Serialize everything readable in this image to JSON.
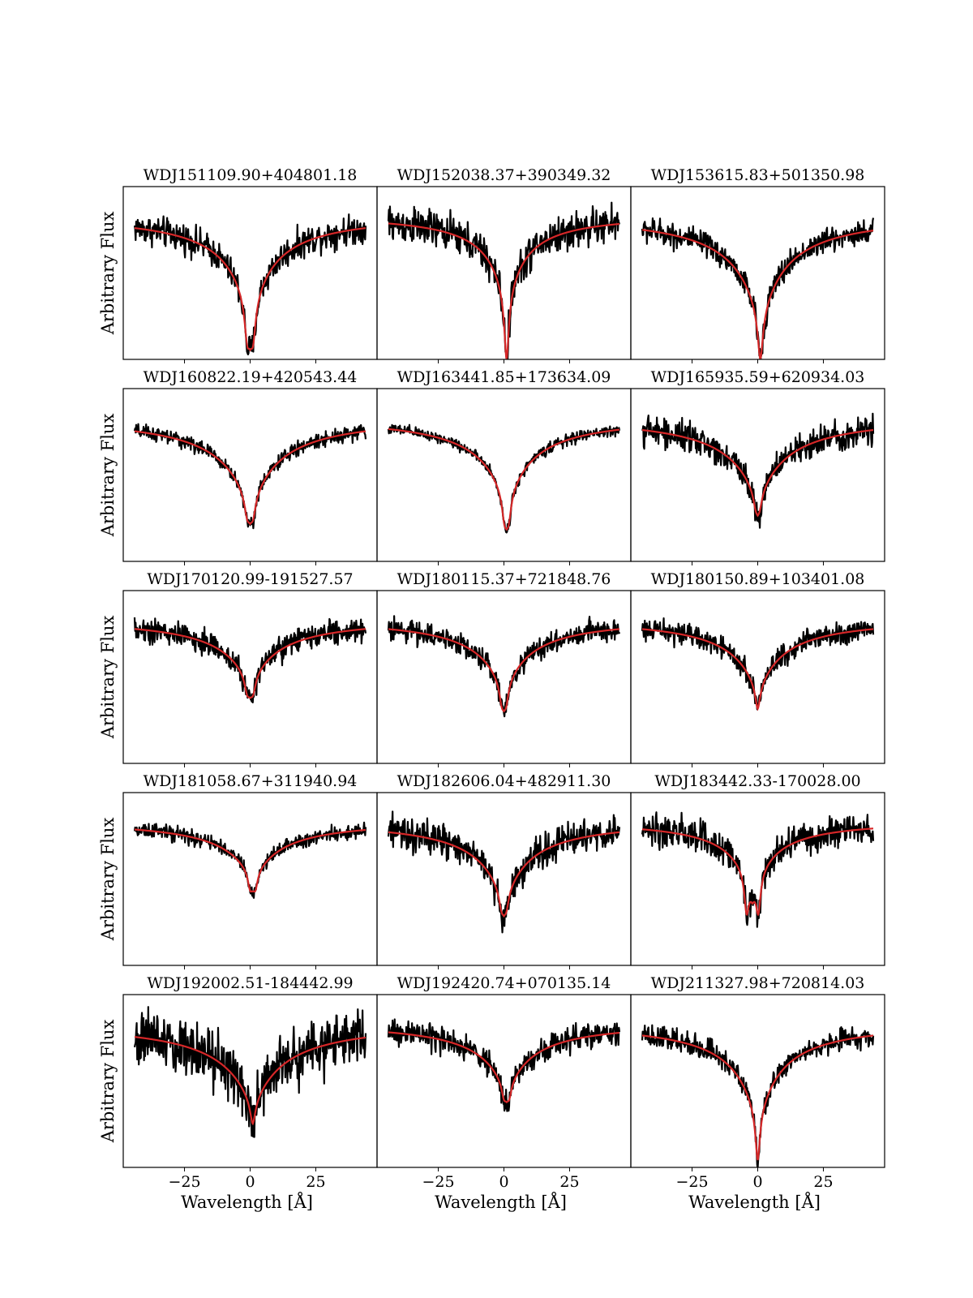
{
  "figure": {
    "xlabel": "Wavelength [Å]",
    "ylabel": "Arbitrary Flux",
    "xticks": [
      -25,
      0,
      25
    ],
    "xtick_labels": [
      "−25",
      "0",
      "25"
    ]
  },
  "colors": {
    "data": "#000000",
    "model": "#d62728",
    "axes": "#000000"
  },
  "chart_data": [
    {
      "type": "line",
      "title": "WDJ151109.90+404801.18",
      "xlim": [
        -44,
        44
      ],
      "ylim": [
        0.2,
        1.15
      ],
      "center": 0,
      "depth": 0.56,
      "width": 9,
      "core_depth": 0.28,
      "core_width": 1.2,
      "core_split": 2.2,
      "noise": 0.04,
      "series": [
        {
          "name": "",
          "role": "data"
        },
        {
          "name": "",
          "role": "model"
        }
      ]
    },
    {
      "type": "line",
      "title": "WDJ152038.37+390349.32",
      "xlim": [
        -44,
        44
      ],
      "ylim": [
        0.2,
        1.15
      ],
      "center": 1,
      "depth": 0.5,
      "width": 7,
      "core_depth": 0.3,
      "core_width": 1.0,
      "core_split": 0,
      "noise": 0.05,
      "series": [
        {
          "name": "",
          "role": "data"
        },
        {
          "name": "",
          "role": "model"
        }
      ]
    },
    {
      "type": "line",
      "title": "WDJ153615.83+501350.98",
      "xlim": [
        -44,
        44
      ],
      "ylim": [
        0.2,
        1.15
      ],
      "center": 1,
      "depth": 0.58,
      "width": 10,
      "core_depth": 0.22,
      "core_width": 1.2,
      "core_split": 0,
      "noise": 0.035,
      "series": [
        {
          "name": "",
          "role": "data"
        },
        {
          "name": "",
          "role": "model"
        }
      ]
    },
    {
      "type": "line",
      "title": "WDJ160822.19+420543.44",
      "xlim": [
        -44,
        44
      ],
      "ylim": [
        0.2,
        1.15
      ],
      "center": 0,
      "depth": 0.5,
      "width": 11,
      "core_depth": 0.14,
      "core_width": 1.2,
      "core_split": 2.2,
      "noise": 0.02,
      "series": [
        {
          "name": "",
          "role": "data"
        },
        {
          "name": "",
          "role": "model"
        }
      ]
    },
    {
      "type": "line",
      "title": "WDJ163441.85+173634.09",
      "xlim": [
        -44,
        44
      ],
      "ylim": [
        0.2,
        1.15
      ],
      "center": 1,
      "depth": 0.48,
      "width": 10,
      "core_depth": 0.18,
      "core_width": 1.1,
      "core_split": 1.6,
      "noise": 0.015,
      "series": [
        {
          "name": "",
          "role": "data"
        },
        {
          "name": "",
          "role": "model"
        }
      ]
    },
    {
      "type": "line",
      "title": "WDJ165935.59+620934.03",
      "xlim": [
        -44,
        44
      ],
      "ylim": [
        0.2,
        1.15
      ],
      "center": 0,
      "depth": 0.46,
      "width": 11,
      "core_depth": 0.1,
      "core_width": 1.1,
      "core_split": 1.4,
      "noise": 0.04,
      "series": [
        {
          "name": "",
          "role": "data"
        },
        {
          "name": "",
          "role": "model"
        }
      ]
    },
    {
      "type": "line",
      "title": "WDJ170120.99-191527.57",
      "xlim": [
        -44,
        44
      ],
      "ylim": [
        0.2,
        1.15
      ],
      "center": 0,
      "depth": 0.36,
      "width": 11,
      "core_depth": 0.12,
      "core_width": 1.2,
      "core_split": 2.2,
      "noise": 0.035,
      "series": [
        {
          "name": "",
          "role": "data"
        },
        {
          "name": "",
          "role": "model"
        }
      ]
    },
    {
      "type": "line",
      "title": "WDJ180115.37+721848.76",
      "xlim": [
        -44,
        44
      ],
      "ylim": [
        0.2,
        1.15
      ],
      "center": 0,
      "depth": 0.4,
      "width": 10,
      "core_depth": 0.14,
      "core_width": 1.1,
      "core_split": 1.6,
      "noise": 0.03,
      "series": [
        {
          "name": "",
          "role": "data"
        },
        {
          "name": "",
          "role": "model"
        }
      ]
    },
    {
      "type": "line",
      "title": "WDJ180150.89+103401.08",
      "xlim": [
        -44,
        44
      ],
      "ylim": [
        0.2,
        1.15
      ],
      "center": 0,
      "depth": 0.4,
      "width": 10,
      "core_depth": 0.1,
      "core_width": 1.1,
      "core_split": 0,
      "noise": 0.03,
      "series": [
        {
          "name": "",
          "role": "data"
        },
        {
          "name": "",
          "role": "model"
        }
      ]
    },
    {
      "type": "line",
      "title": "WDJ181058.67+311940.94",
      "xlim": [
        -44,
        44
      ],
      "ylim": [
        0.2,
        1.15
      ],
      "center": 1,
      "depth": 0.32,
      "width": 11,
      "core_depth": 0.12,
      "core_width": 1.0,
      "core_split": 2.0,
      "noise": 0.02,
      "series": [
        {
          "name": "",
          "role": "data"
        },
        {
          "name": "",
          "role": "model"
        }
      ]
    },
    {
      "type": "line",
      "title": "WDJ182606.04+482911.30",
      "xlim": [
        -44,
        44
      ],
      "ylim": [
        0.2,
        1.15
      ],
      "center": 0,
      "depth": 0.44,
      "width": 10,
      "core_depth": 0.12,
      "core_width": 1.1,
      "core_split": 1.8,
      "noise": 0.045,
      "series": [
        {
          "name": "",
          "role": "data"
        },
        {
          "name": "",
          "role": "model"
        }
      ]
    },
    {
      "type": "line",
      "title": "WDJ183442.33-170028.00",
      "xlim": [
        -44,
        44
      ],
      "ylim": [
        0.2,
        1.15
      ],
      "center": -2,
      "depth": 0.4,
      "width": 8,
      "core_depth": 0.3,
      "core_width": 1.0,
      "core_split": 4.5,
      "noise": 0.045,
      "series": [
        {
          "name": "",
          "role": "data"
        },
        {
          "name": "",
          "role": "model"
        }
      ]
    },
    {
      "type": "line",
      "title": "WDJ192002.51-184442.99",
      "xlim": [
        -44,
        44
      ],
      "ylim": [
        0.2,
        1.15
      ],
      "center": 1,
      "depth": 0.46,
      "width": 12,
      "core_depth": 0.1,
      "core_width": 1.2,
      "core_split": 0,
      "noise": 0.08,
      "series": [
        {
          "name": "",
          "role": "data"
        },
        {
          "name": "",
          "role": "model"
        }
      ]
    },
    {
      "type": "line",
      "title": "WDJ192420.74+070135.14",
      "xlim": [
        -44,
        44
      ],
      "ylim": [
        0.2,
        1.15
      ],
      "center": 1,
      "depth": 0.38,
      "width": 10,
      "core_depth": 0.1,
      "core_width": 1.0,
      "core_split": 2.0,
      "noise": 0.035,
      "series": [
        {
          "name": "",
          "role": "data"
        },
        {
          "name": "",
          "role": "model"
        }
      ]
    },
    {
      "type": "line",
      "title": "WDJ211327.98+720814.03",
      "xlim": [
        -44,
        44
      ],
      "ylim": [
        0.2,
        1.15
      ],
      "center": 0,
      "depth": 0.54,
      "width": 9,
      "core_depth": 0.22,
      "core_width": 1.0,
      "core_split": 0,
      "noise": 0.03,
      "series": [
        {
          "name": "",
          "role": "data"
        },
        {
          "name": "",
          "role": "model"
        }
      ]
    }
  ]
}
